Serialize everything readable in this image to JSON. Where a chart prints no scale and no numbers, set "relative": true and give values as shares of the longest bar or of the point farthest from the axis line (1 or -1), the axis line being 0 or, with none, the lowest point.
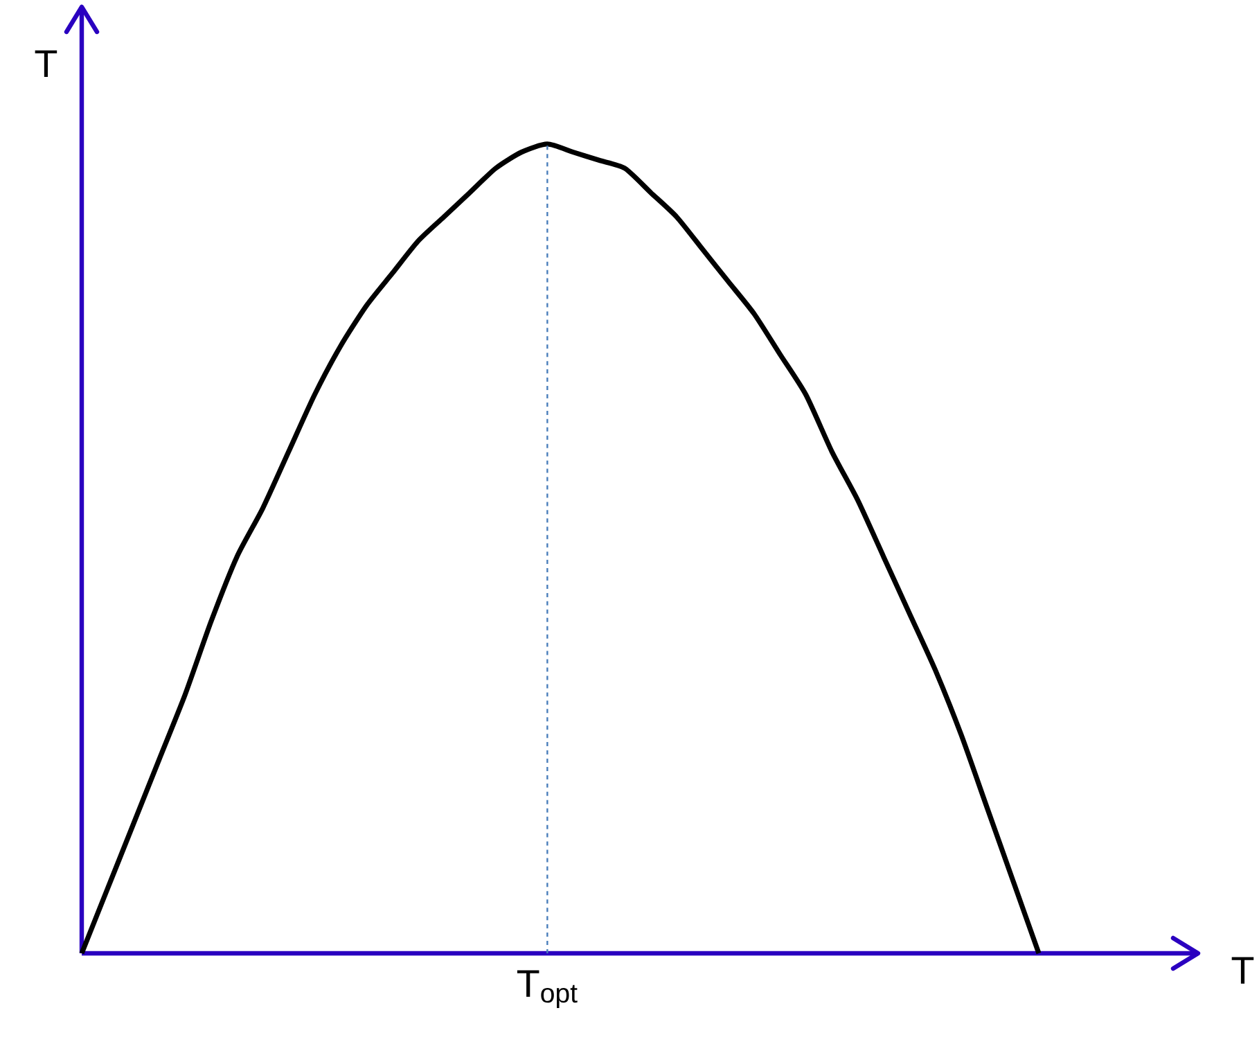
{
  "chart_data": {
    "type": "line",
    "relative": true,
    "xlabel": "T",
    "ylabel": "T",
    "categories": [
      null,
      null,
      null,
      null,
      null,
      null,
      null,
      null,
      null,
      null,
      null,
      null,
      null,
      null,
      null,
      null,
      null,
      null,
      null,
      null,
      null,
      null,
      null,
      null,
      null,
      null,
      null,
      null,
      null,
      null,
      null,
      null,
      null,
      null,
      null,
      null,
      null,
      null
    ],
    "series": [
      {
        "color": "#000000",
        "values": [
          0,
          0.08,
          0.16,
          0.24,
          0.32,
          0.41,
          0.49,
          0.55,
          0.62,
          0.69,
          0.75,
          0.8,
          0.84,
          0.88,
          0.91,
          0.94,
          0.97,
          0.99,
          1.0,
          0.99,
          0.98,
          0.97,
          0.94,
          0.91,
          0.87,
          0.83,
          0.79,
          0.74,
          0.69,
          0.62,
          0.56,
          0.49,
          0.42,
          0.35,
          0.27,
          0.18,
          0.09,
          0
        ]
      }
    ],
    "annotations": [
      "T$_{opt}$"
    ],
    "marker": "none",
    "line_style": "solid"
  }
}
